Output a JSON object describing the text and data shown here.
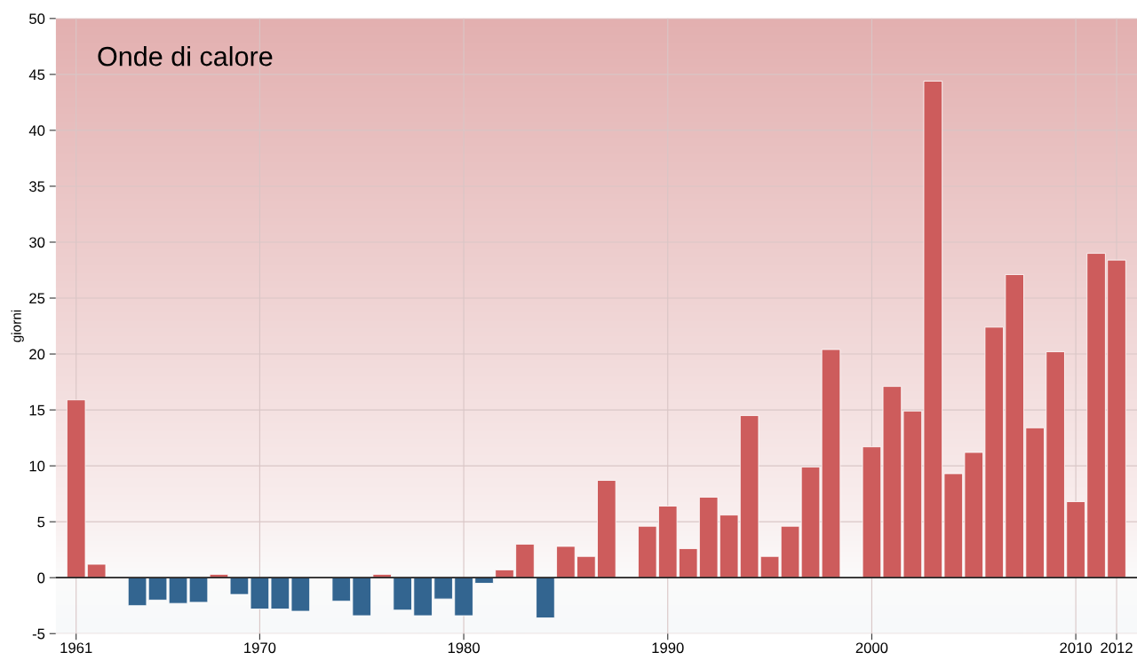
{
  "chart_data": {
    "type": "bar",
    "title": "Onde di calore",
    "ylabel": "giorni",
    "x": [
      1961,
      1962,
      1963,
      1964,
      1965,
      1966,
      1967,
      1968,
      1969,
      1970,
      1971,
      1972,
      1973,
      1974,
      1975,
      1976,
      1977,
      1978,
      1979,
      1980,
      1981,
      1982,
      1983,
      1984,
      1985,
      1986,
      1987,
      1988,
      1989,
      1990,
      1991,
      1992,
      1993,
      1994,
      1995,
      1996,
      1997,
      1998,
      1999,
      2000,
      2001,
      2002,
      2003,
      2004,
      2005,
      2006,
      2007,
      2008,
      2009,
      2010,
      2011,
      2012
    ],
    "values": [
      15.9,
      1.2,
      null,
      -2.5,
      -2.0,
      -2.3,
      -2.2,
      0.3,
      -1.5,
      -2.8,
      -2.8,
      -3.0,
      null,
      -2.1,
      -3.4,
      0.3,
      -2.9,
      -3.4,
      -1.9,
      -3.4,
      -0.5,
      0.7,
      3.0,
      -3.6,
      2.8,
      1.9,
      8.7,
      null,
      4.6,
      6.4,
      2.6,
      7.2,
      5.6,
      14.5,
      1.9,
      4.6,
      9.9,
      20.4,
      null,
      11.7,
      17.1,
      14.9,
      44.4,
      9.3,
      11.2,
      22.4,
      27.1,
      13.4,
      20.2,
      6.8,
      29.0,
      28.4
    ],
    "colors": [
      "#cd5c5c",
      "#cd5c5c",
      "#cd5c5c",
      "#336590",
      "#336590",
      "#336590",
      "#336590",
      "#cd5c5c",
      "#336590",
      "#336590",
      "#336590",
      "#336590",
      "#cd5c5c",
      "#336590",
      "#336590",
      "#cd5c5c",
      "#336590",
      "#336590",
      "#336590",
      "#336590",
      "#336590",
      "#cd5c5c",
      "#cd5c5c",
      "#336590",
      "#cd5c5c",
      "#cd5c5c",
      "#cd5c5c",
      "#cd5c5c",
      "#cd5c5c",
      "#cd5c5c",
      "#cd5c5c",
      "#cd5c5c",
      "#cd5c5c",
      "#cd5c5c",
      "#cd5c5c",
      "#cd5c5c",
      "#cd5c5c",
      "#cd5c5c",
      "#cd5c5c",
      "#cd5c5c",
      "#cd5c5c",
      "#cd5c5c",
      "#cd5c5c",
      "#cd5c5c",
      "#cd5c5c",
      "#cd5c5c",
      "#cd5c5c",
      "#cd5c5c",
      "#cd5c5c",
      "#cd5c5c",
      "#cd5c5c",
      "#cd5c5c"
    ],
    "xlim": [
      1960,
      2013
    ],
    "xticks": [
      1961,
      1970,
      1980,
      1990,
      2000,
      2010,
      2012
    ],
    "ylim": [
      -5,
      50
    ],
    "yticks": [
      -5,
      0,
      5,
      10,
      15,
      20,
      25,
      30,
      35,
      40,
      45,
      50
    ],
    "ref_lines": [
      {
        "axis": "y",
        "value": 0,
        "color": "#222222"
      }
    ],
    "grid": true
  }
}
